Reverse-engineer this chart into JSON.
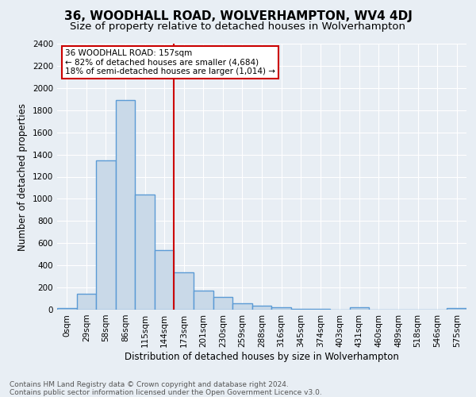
{
  "title": "36, WOODHALL ROAD, WOLVERHAMPTON, WV4 4DJ",
  "subtitle": "Size of property relative to detached houses in Wolverhampton",
  "xlabel": "Distribution of detached houses by size in Wolverhampton",
  "ylabel": "Number of detached properties",
  "footnote1": "Contains HM Land Registry data © Crown copyright and database right 2024.",
  "footnote2": "Contains public sector information licensed under the Open Government Licence v3.0.",
  "categories": [
    "0sqm",
    "29sqm",
    "58sqm",
    "86sqm",
    "115sqm",
    "144sqm",
    "173sqm",
    "201sqm",
    "230sqm",
    "259sqm",
    "288sqm",
    "316sqm",
    "345sqm",
    "374sqm",
    "403sqm",
    "431sqm",
    "460sqm",
    "489sqm",
    "518sqm",
    "546sqm",
    "575sqm"
  ],
  "values": [
    15,
    140,
    1350,
    1890,
    1040,
    540,
    335,
    175,
    115,
    60,
    35,
    20,
    10,
    5,
    0,
    20,
    0,
    0,
    0,
    0,
    15
  ],
  "bar_color": "#c9d9e8",
  "bar_edge_color": "#5b9bd5",
  "bar_edge_width": 1.0,
  "vline_x_index": 5.5,
  "vline_color": "#cc0000",
  "annotation_title": "36 WOODHALL ROAD: 157sqm",
  "annotation_line1": "← 82% of detached houses are smaller (4,684)",
  "annotation_line2": "18% of semi-detached houses are larger (1,014) →",
  "annotation_box_color": "#cc0000",
  "annotation_bg": "#ffffff",
  "ylim": [
    0,
    2400
  ],
  "yticks": [
    0,
    200,
    400,
    600,
    800,
    1000,
    1200,
    1400,
    1600,
    1800,
    2000,
    2200,
    2400
  ],
  "bg_color": "#e8eef4",
  "plot_bg_color": "#e8eef4",
  "title_fontsize": 11,
  "subtitle_fontsize": 9.5,
  "xlabel_fontsize": 8.5,
  "ylabel_fontsize": 8.5,
  "tick_fontsize": 7.5,
  "annotation_fontsize": 7.5,
  "footnote_fontsize": 6.5
}
